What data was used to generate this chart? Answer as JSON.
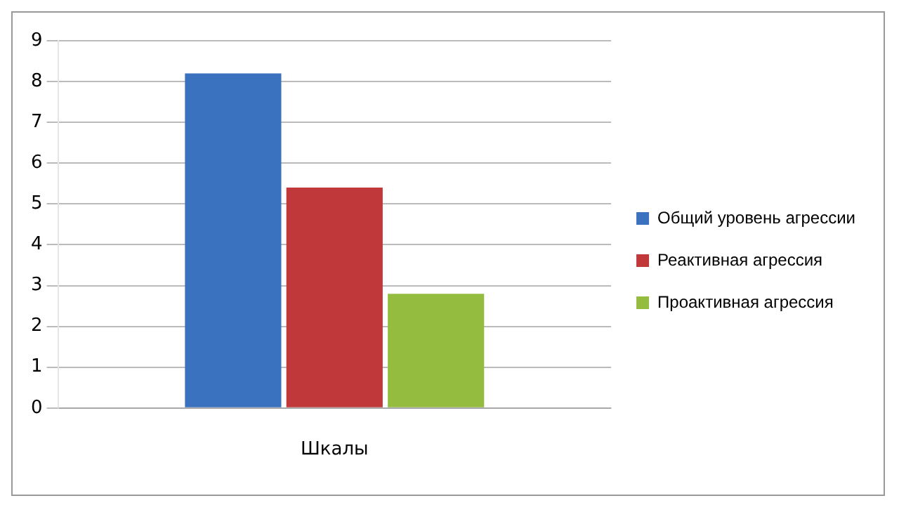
{
  "chart_data": {
    "type": "bar",
    "categories": [
      "Шкалы"
    ],
    "series": [
      {
        "name": "Общий уровень агрессии",
        "color": "#3a72c0",
        "values": [
          8.2
        ]
      },
      {
        "name": "Реактивная агрессия",
        "color": "#c0383a",
        "values": [
          5.4
        ]
      },
      {
        "name": "Проактивная агрессия",
        "color": "#94bc3e",
        "values": [
          2.8
        ]
      }
    ],
    "ylim": [
      0,
      9
    ],
    "yticks": [
      0,
      1,
      2,
      3,
      4,
      5,
      6,
      7,
      8,
      9
    ],
    "grid": "y",
    "legend": "right"
  }
}
